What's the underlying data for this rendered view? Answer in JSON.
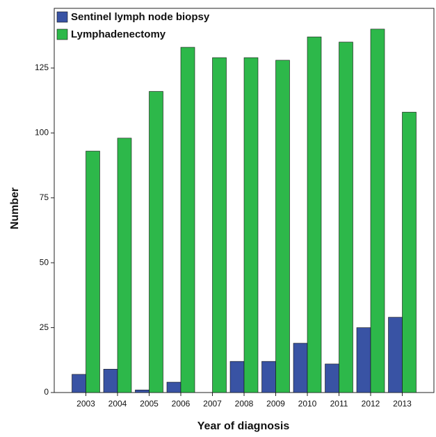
{
  "chart_data": {
    "type": "bar",
    "x_label": "Year of diagnosis",
    "y_label": "Number",
    "categories": [
      "2003",
      "2004",
      "2005",
      "2006",
      "2007",
      "2008",
      "2009",
      "2010",
      "2011",
      "2012",
      "2013"
    ],
    "series": [
      {
        "name": "Sentinel lymph node biopsy",
        "color": "#3953a4",
        "values": [
          7,
          9,
          1,
          4,
          0,
          12,
          12,
          19,
          11,
          25,
          29
        ]
      },
      {
        "name": "Lymphadenectomy",
        "color": "#2db84a",
        "values": [
          93,
          98,
          116,
          133,
          129,
          129,
          128,
          137,
          135,
          140,
          108
        ]
      }
    ],
    "ylim": [
      0,
      148
    ],
    "yticks": [
      0,
      25,
      50,
      75,
      100,
      125
    ],
    "grid": false,
    "legend": "top-left"
  }
}
